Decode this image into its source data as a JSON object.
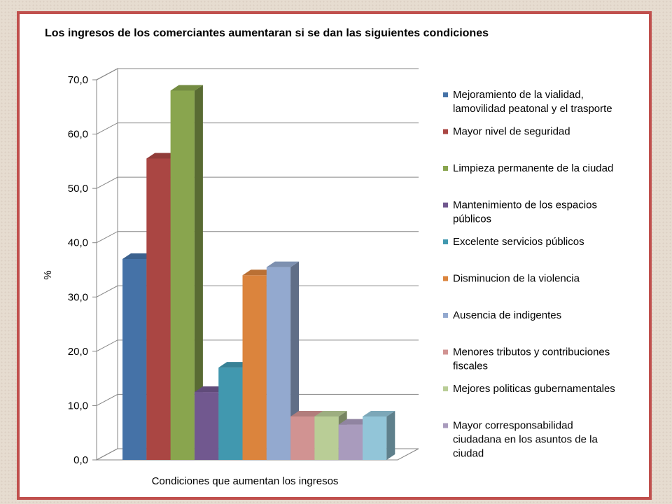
{
  "chart_data": {
    "type": "bar",
    "title": "Los ingresos de los comerciantes aumentaran si se dan las siguientes condiciones",
    "xlabel": "Condiciones que aumentan los ingresos",
    "ylabel": "%",
    "ylim": [
      0,
      70
    ],
    "yticks": [
      "0,0",
      "10,0",
      "20,0",
      "30,0",
      "40,0",
      "50,0",
      "60,0",
      "70,0"
    ],
    "grid": true,
    "legend_position": "right",
    "series": [
      {
        "name": [
          "Mejoramiento de la vialidad,",
          "lamovilidad peatonal y el trasporte"
        ],
        "value": 37.0,
        "color": "#4572a7"
      },
      {
        "name": [
          "Mayor nivel de seguridad"
        ],
        "value": 55.5,
        "color": "#aa4643"
      },
      {
        "name": [
          "Limpieza permanente de la ciudad"
        ],
        "value": 68.0,
        "color": "#89a54e"
      },
      {
        "name": [
          "Mantenimiento de los espacios",
          "públicos"
        ],
        "value": 12.5,
        "color": "#71588f"
      },
      {
        "name": [
          "Excelente servicios públicos"
        ],
        "value": 17.0,
        "color": "#4198af"
      },
      {
        "name": [
          "Disminucion de la violencia"
        ],
        "value": 34.0,
        "color": "#db843d"
      },
      {
        "name": [
          "Ausencia de indigentes"
        ],
        "value": 35.5,
        "color": "#93a9cf"
      },
      {
        "name": [
          "Menores tributos y contribuciones",
          "fiscales"
        ],
        "value": 8.0,
        "color": "#d19392"
      },
      {
        "name": [
          "Mejores politicas gubernamentales"
        ],
        "value": 8.0,
        "color": "#b9cd96"
      },
      {
        "name": [
          "Mayor corresponsabilidad",
          "ciudadana en los asuntos de la",
          "ciudad"
        ],
        "value": 6.5,
        "color": "#a99bbd"
      },
      {
        "name": [],
        "value": 8.0,
        "color": "#92c5d8"
      }
    ]
  }
}
